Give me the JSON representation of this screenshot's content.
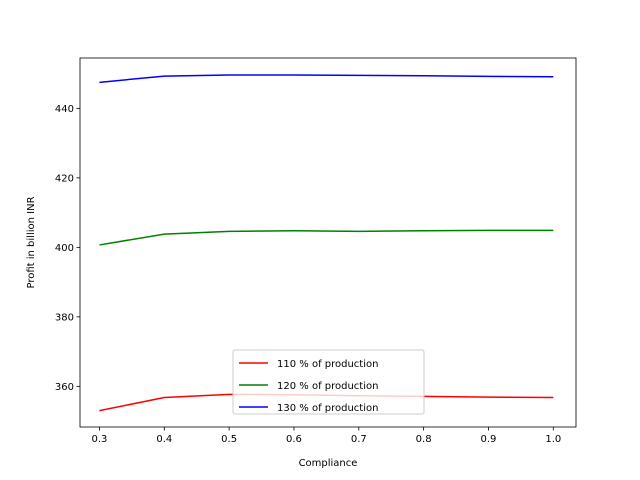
{
  "chart_data": {
    "type": "line",
    "title": "",
    "xlabel": "Compliance",
    "ylabel": "Profit in billion INR",
    "x": [
      0.3,
      0.4,
      0.5,
      0.6,
      0.7,
      0.8,
      0.9,
      1.0
    ],
    "xlim": [
      0.27,
      1.035
    ],
    "ylim": [
      348.3,
      454.5
    ],
    "xticks": [
      "0.3",
      "0.4",
      "0.5",
      "0.6",
      "0.7",
      "0.8",
      "0.9",
      "1.0"
    ],
    "yticks": [
      "360",
      "380",
      "400",
      "420",
      "440"
    ],
    "grid": false,
    "legend_position": "lower center",
    "series": [
      {
        "name": "110 % of production",
        "color": "#ff0000",
        "values": [
          353.0,
          356.8,
          357.7,
          357.6,
          357.3,
          357.1,
          356.9,
          356.8
        ]
      },
      {
        "name": "120 % of production",
        "color": "#008000",
        "values": [
          400.7,
          403.8,
          404.6,
          404.8,
          404.6,
          404.8,
          404.9,
          404.9
        ]
      },
      {
        "name": "130 % of production",
        "color": "#0000ff",
        "values": [
          447.5,
          449.3,
          449.6,
          449.6,
          449.5,
          449.4,
          449.2,
          449.1
        ]
      }
    ]
  }
}
